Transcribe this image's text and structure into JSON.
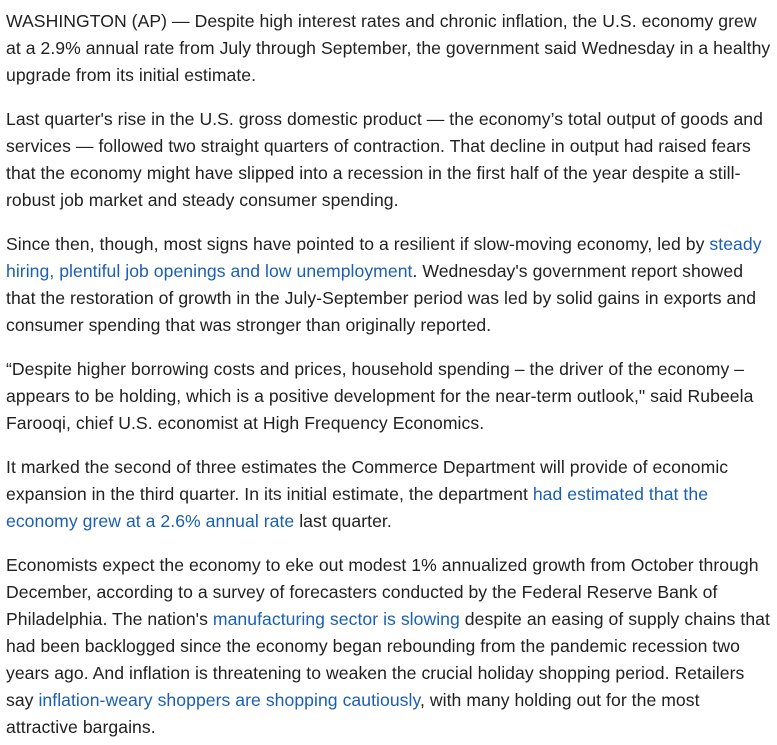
{
  "article": {
    "p1": "WASHINGTON (AP) — Despite high interest rates and chronic inflation, the U.S. economy grew at a 2.9% annual rate from July through September, the government said Wednesday in a healthy upgrade from its initial estimate.",
    "p2": "Last quarter's rise in the U.S. gross domestic product — the economy’s total output of goods and services — followed two straight quarters of contraction. That decline in output had raised fears that the economy might have slipped into a recession in the first half of the year despite a still-robust job market and steady consumer spending.",
    "p3": {
      "before": "Since then, though, most signs have pointed to a resilient if slow-moving economy, led by ",
      "link": "steady hiring, plentiful job openings and low unemployment",
      "after": ". Wednesday's government report showed that the restoration of growth in the July-September period was led by solid gains in exports and consumer spending that was stronger than originally reported."
    },
    "p4": "“Despite higher borrowing costs and prices, household spending – the driver of the economy – appears to be holding, which is a positive development for the near-term outlook,\" said Rubeela Farooqi, chief U.S. economist at High Frequency Economics.",
    "p5": {
      "before": "It marked the second of three estimates the Commerce Department will provide of economic expansion in the third quarter. In its initial estimate, the department ",
      "link": "had estimated that the economy grew at a 2.6% annual rate",
      "after": " last quarter."
    },
    "p6": {
      "before": "Economists expect the economy to eke out modest 1% annualized growth from October through December, according to a survey of forecasters conducted by the Federal Reserve Bank of Philadelphia. The nation's ",
      "link1": "manufacturing sector is slowing",
      "middle": " despite an easing of supply chains that had been backlogged since the economy began rebounding from the pandemic recession two years ago. And inflation is threatening to weaken the crucial holiday shopping period. Retailers say ",
      "link2": "inflation-weary shoppers are shopping cautiously",
      "after": ", with many holding out for the most attractive bargains."
    }
  },
  "colors": {
    "text": "#212121",
    "link": "#1a5fb4",
    "background": "#ffffff"
  }
}
